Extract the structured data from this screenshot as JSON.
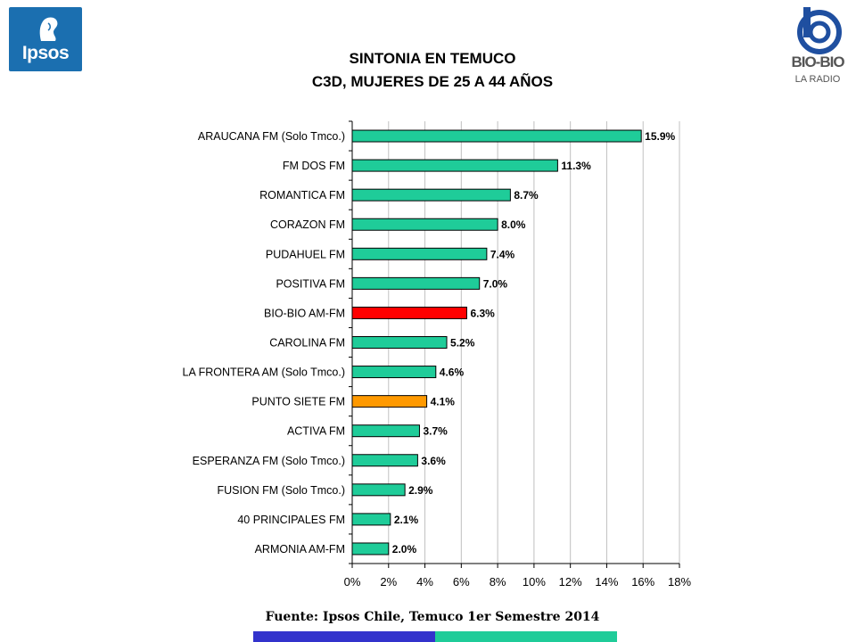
{
  "logos": {
    "left": "Ipsos",
    "right_name": "BIO-BIO",
    "right_sub": "LA RADIO"
  },
  "colors": {
    "bar_default": "#1fcc99",
    "bar_highlight": "#ff0000",
    "bar_secondary": "#ff9900",
    "ipsos_blue": "#1b6fb0",
    "strip_left": "#3333cc",
    "strip_right": "#1fcc99"
  },
  "source": "Fuente: Ipsos Chile, Temuco 1er Semestre 2014",
  "chart_data": {
    "type": "bar",
    "orientation": "horizontal",
    "title": "SINTONIA EN TEMUCO",
    "subtitle": "C3D, MUJERES DE 25 A 44 AÑOS",
    "categories": [
      "ARAUCANA FM  (Solo Tmco.)",
      "FM DOS FM",
      "ROMANTICA FM",
      "CORAZON FM",
      "PUDAHUEL FM",
      "POSITIVA FM",
      "BIO-BIO AM-FM",
      "CAROLINA FM",
      "LA FRONTERA AM  (Solo Tmco.)",
      "PUNTO SIETE FM",
      "ACTIVA  FM",
      "ESPERANZA FM  (Solo Tmco.)",
      "FUSION FM  (Solo Tmco.)",
      "40 PRINCIPALES FM",
      "ARMONIA AM-FM"
    ],
    "values": [
      15.9,
      11.3,
      8.7,
      8.0,
      7.4,
      7.0,
      6.3,
      5.2,
      4.6,
      4.1,
      3.7,
      3.6,
      2.9,
      2.1,
      2.0
    ],
    "value_labels": [
      "15.9%",
      "11.3%",
      "8.7%",
      "8.0%",
      "7.4%",
      "7.0%",
      "6.3%",
      "5.2%",
      "4.6%",
      "4.1%",
      "3.7%",
      "3.6%",
      "2.9%",
      "2.1%",
      "2.0%"
    ],
    "highlight": {
      "BIO-BIO AM-FM": "#ff0000",
      "PUNTO SIETE FM": "#ff9900"
    },
    "xlim": [
      0,
      18
    ],
    "xticks": [
      0,
      2,
      4,
      6,
      8,
      10,
      12,
      14,
      16,
      18
    ],
    "xtick_labels": [
      "0%",
      "2%",
      "4%",
      "6%",
      "8%",
      "10%",
      "12%",
      "14%",
      "16%",
      "18%"
    ],
    "grid": true,
    "legend": false
  }
}
